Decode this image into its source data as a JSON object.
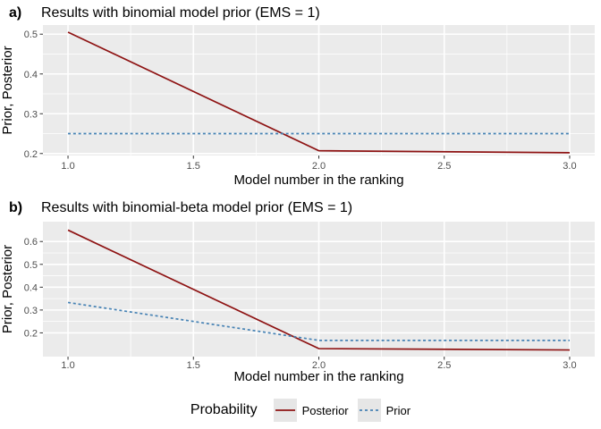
{
  "colors": {
    "panel_bg": "#EBEBEB",
    "grid": "#FFFFFF",
    "tick_text": "#4D4D4D",
    "tick_mark": "#333333",
    "legend_key_bg": "#E6E6E6",
    "posterior": "#8E1313",
    "prior": "#4682B4"
  },
  "chart_data": [
    {
      "type": "line",
      "tag": "a)",
      "title": "Results with binomial model prior (EMS = 1)",
      "xlabel": "Model number in the ranking",
      "ylabel": "Prior, Posterior",
      "x": [
        1,
        2,
        3
      ],
      "series": [
        {
          "name": "Posterior",
          "style": "solid",
          "color": "#8E1313",
          "values": [
            0.505,
            0.207,
            0.202
          ]
        },
        {
          "name": "Prior",
          "style": "dashed",
          "color": "#4682B4",
          "values": [
            0.25,
            0.25,
            0.25
          ]
        }
      ],
      "xlim": [
        0.9,
        3.1
      ],
      "ylim": [
        0.195,
        0.523
      ],
      "xticks": [
        1.0,
        1.5,
        2.0,
        2.5,
        3.0
      ],
      "xtick_labels": [
        "1.0",
        "1.5",
        "2.0",
        "2.5",
        "3.0"
      ],
      "yticks": [
        0.2,
        0.3,
        0.4,
        0.5
      ],
      "ytick_labels": [
        "0.2",
        "0.3",
        "0.4",
        "0.5"
      ],
      "grid": true,
      "legend_position": "bottom"
    },
    {
      "type": "line",
      "tag": "b)",
      "title": "Results with binomial-beta model prior (EMS = 1)",
      "xlabel": "Model number in the ranking",
      "ylabel": "Prior, Posterior",
      "x": [
        1,
        2,
        3
      ],
      "series": [
        {
          "name": "Posterior",
          "style": "solid",
          "color": "#8E1313",
          "values": [
            0.65,
            0.131,
            0.125
          ]
        },
        {
          "name": "Prior",
          "style": "dashed",
          "color": "#4682B4",
          "values": [
            0.333,
            0.167,
            0.167
          ]
        }
      ],
      "xlim": [
        0.9,
        3.1
      ],
      "ylim": [
        0.096,
        0.687
      ],
      "xticks": [
        1.0,
        1.5,
        2.0,
        2.5,
        3.0
      ],
      "xtick_labels": [
        "1.0",
        "1.5",
        "2.0",
        "2.5",
        "3.0"
      ],
      "yticks": [
        0.2,
        0.3,
        0.4,
        0.5,
        0.6
      ],
      "ytick_labels": [
        "0.2",
        "0.3",
        "0.4",
        "0.5",
        "0.6"
      ],
      "grid": true,
      "legend_position": "bottom"
    }
  ],
  "legend": {
    "title": "Probability",
    "items": [
      {
        "label": "Posterior",
        "style": "solid",
        "color": "#8E1313"
      },
      {
        "label": "Prior",
        "style": "dashed",
        "color": "#4682B4"
      }
    ]
  }
}
